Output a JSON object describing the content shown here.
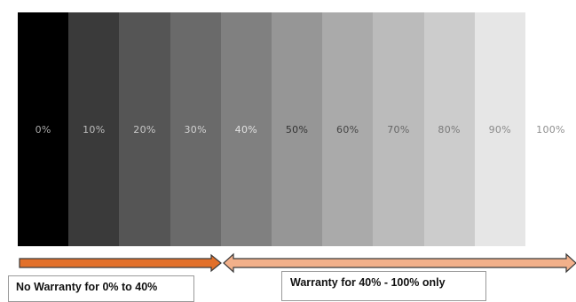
{
  "scale": {
    "steps": [
      {
        "label": "0%",
        "fill": "#000000",
        "text_color": "#a9a9a9"
      },
      {
        "label": "10%",
        "fill": "#3a3a3a",
        "text_color": "#bdbdbd"
      },
      {
        "label": "20%",
        "fill": "#555555",
        "text_color": "#c8c8c8"
      },
      {
        "label": "30%",
        "fill": "#6a6a6a",
        "text_color": "#d2d2d2"
      },
      {
        "label": "40%",
        "fill": "#808080",
        "text_color": "#e2e2e2"
      },
      {
        "label": "50%",
        "fill": "#969696",
        "text_color": "#333333"
      },
      {
        "label": "60%",
        "fill": "#aaaaaa",
        "text_color": "#444444"
      },
      {
        "label": "70%",
        "fill": "#bbbbbb",
        "text_color": "#666666"
      },
      {
        "label": "80%",
        "fill": "#cccccc",
        "text_color": "#7a7a7a"
      },
      {
        "label": "90%",
        "fill": "#e6e6e6",
        "text_color": "#8a8a8a"
      },
      {
        "label": "100%",
        "fill": "#ffffff",
        "text_color": "#8f8f8f"
      }
    ]
  },
  "arrows": {
    "no_warranty_color": "#e2702a",
    "warranty_color": "#f2b08a",
    "stroke_color": "#3a3a3a"
  },
  "notes": {
    "no_warranty": "No Warranty for 0% to 40%",
    "warranty": "Warranty for 40% - 100% only"
  }
}
